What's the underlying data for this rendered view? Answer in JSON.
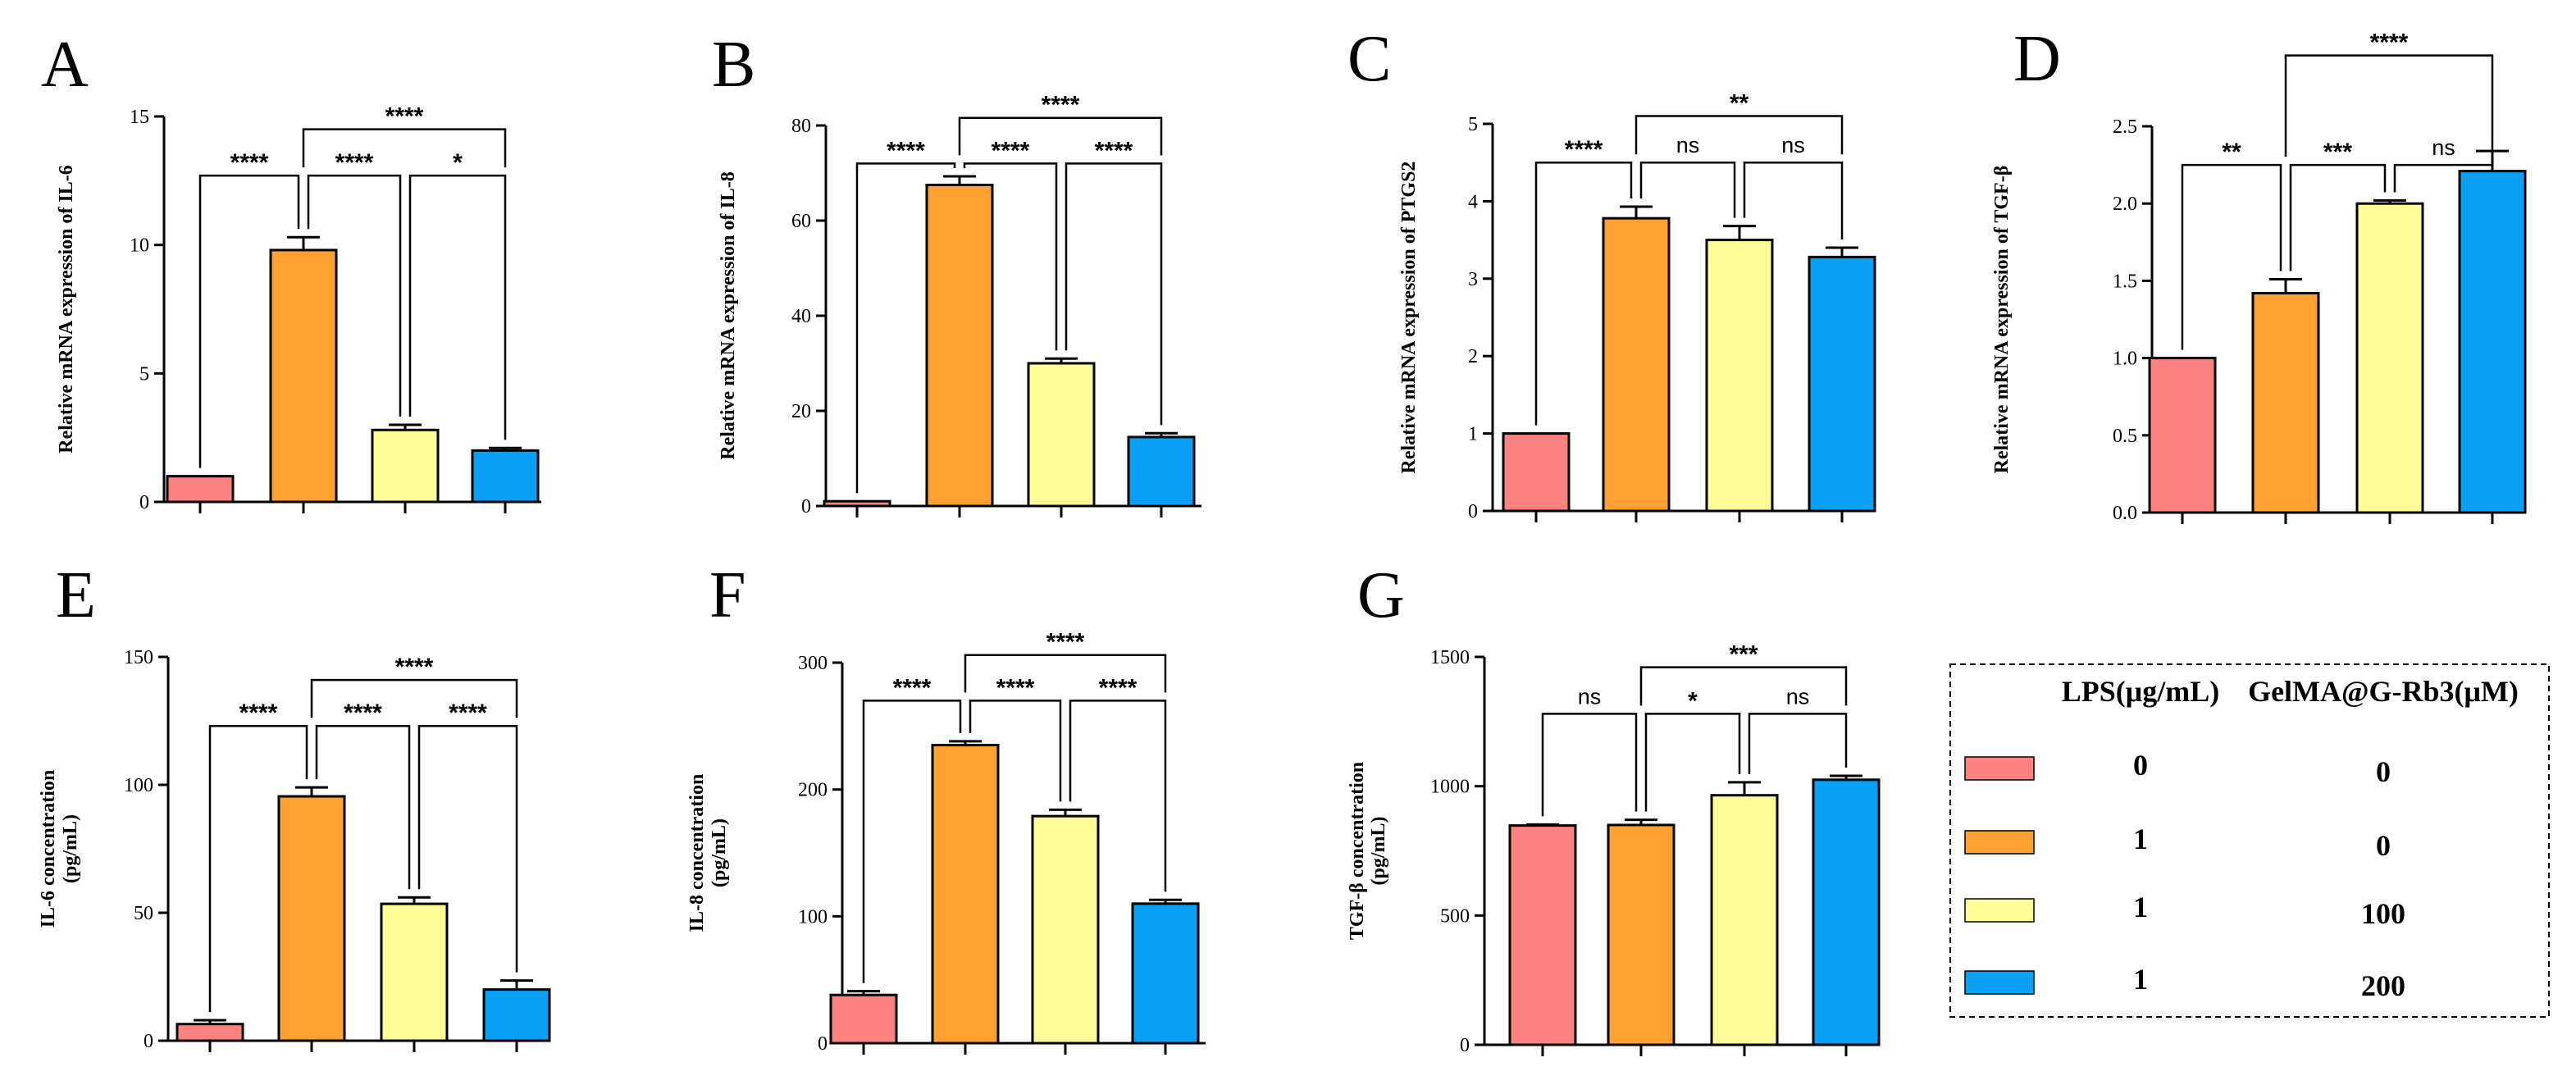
{
  "chart_data": [
    {
      "type": "bar",
      "panel": "A",
      "ylabel": "Relative mRNA expression of IL-6",
      "ylim": [
        0,
        15
      ],
      "yticks": [
        0,
        5,
        10,
        15
      ],
      "values": [
        1.0,
        9.8,
        2.8,
        2.0
      ],
      "errors": [
        0.0,
        0.5,
        0.2,
        0.1
      ],
      "comparisons": [
        {
          "from": 1,
          "to": 0,
          "label": "****"
        },
        {
          "from": 1,
          "to": 2,
          "label": "****"
        },
        {
          "from": 3,
          "to": 2,
          "label": "*"
        },
        {
          "from": 1,
          "to": 3,
          "label": "****"
        }
      ]
    },
    {
      "type": "bar",
      "panel": "B",
      "ylabel": "Relative mRNA expression of IL-8",
      "ylim": [
        0,
        80
      ],
      "yticks": [
        0,
        20,
        40,
        60,
        80
      ],
      "values": [
        1.0,
        67.5,
        30.0,
        14.5
      ],
      "errors": [
        0.0,
        1.8,
        1.0,
        0.8
      ],
      "comparisons": [
        {
          "from": 1,
          "to": 0,
          "label": "****"
        },
        {
          "from": 1,
          "to": 2,
          "label": "****"
        },
        {
          "from": 3,
          "to": 2,
          "label": "****"
        },
        {
          "from": 1,
          "to": 3,
          "label": "****"
        }
      ]
    },
    {
      "type": "bar",
      "panel": "C",
      "ylabel": "Relative mRNA expression of PTGS2",
      "ylim": [
        0,
        5
      ],
      "yticks": [
        0,
        1,
        2,
        3,
        4,
        5
      ],
      "values": [
        1.0,
        3.78,
        3.5,
        3.28
      ],
      "errors": [
        0.0,
        0.15,
        0.18,
        0.12
      ],
      "comparisons": [
        {
          "from": 1,
          "to": 0,
          "label": "****"
        },
        {
          "from": 1,
          "to": 2,
          "label": "ns"
        },
        {
          "from": 3,
          "to": 2,
          "label": "ns"
        },
        {
          "from": 1,
          "to": 3,
          "label": "**"
        }
      ]
    },
    {
      "type": "bar",
      "panel": "D",
      "ylabel": "Relative mRNA expression of TGF-β",
      "ylim": [
        0,
        2.5
      ],
      "yticks": [
        "0.0",
        "0.5",
        "1.0",
        "1.5",
        "2.0",
        "2.5"
      ],
      "values": [
        1.0,
        1.42,
        2.0,
        2.21
      ],
      "errors": [
        0.0,
        0.09,
        0.02,
        0.13
      ],
      "comparisons": [
        {
          "from": 1,
          "to": 0,
          "label": "**"
        },
        {
          "from": 1,
          "to": 2,
          "label": "***"
        },
        {
          "from": 3,
          "to": 2,
          "label": "ns"
        },
        {
          "from": 1,
          "to": 3,
          "label": "****"
        }
      ]
    },
    {
      "type": "bar",
      "panel": "E",
      "ylabel": "IL-6 concentration",
      "ylabel2": "(pg/mL)",
      "ylim": [
        0,
        150
      ],
      "yticks": [
        0,
        50,
        100,
        150
      ],
      "values": [
        6.5,
        95.5,
        53.5,
        20.0
      ],
      "errors": [
        1.5,
        3.5,
        2.5,
        3.5
      ],
      "comparisons": [
        {
          "from": 1,
          "to": 0,
          "label": "****"
        },
        {
          "from": 1,
          "to": 2,
          "label": "****"
        },
        {
          "from": 3,
          "to": 2,
          "label": "****"
        },
        {
          "from": 1,
          "to": 3,
          "label": "****"
        }
      ]
    },
    {
      "type": "bar",
      "panel": "F",
      "ylabel": "IL-8 concentration",
      "ylabel2": "(pg/mL)",
      "ylim": [
        0,
        300
      ],
      "yticks": [
        0,
        100,
        200,
        300
      ],
      "values": [
        38,
        235,
        179,
        110
      ],
      "errors": [
        3,
        3,
        5,
        3
      ],
      "comparisons": [
        {
          "from": 1,
          "to": 0,
          "label": "****"
        },
        {
          "from": 1,
          "to": 2,
          "label": "****"
        },
        {
          "from": 3,
          "to": 2,
          "label": "****"
        },
        {
          "from": 1,
          "to": 3,
          "label": "****"
        }
      ]
    },
    {
      "type": "bar",
      "panel": "G",
      "ylabel": "TGF-β concentration",
      "ylabel2": "(pg/mL)",
      "ylim": [
        0,
        1500
      ],
      "yticks": [
        0,
        500,
        1000,
        1500
      ],
      "values": [
        848,
        850,
        965,
        1025
      ],
      "errors": [
        4,
        20,
        50,
        15
      ],
      "comparisons": [
        {
          "from": 1,
          "to": 0,
          "label": "ns"
        },
        {
          "from": 1,
          "to": 2,
          "label": "*"
        },
        {
          "from": 3,
          "to": 2,
          "label": "ns"
        },
        {
          "from": 1,
          "to": 3,
          "label": "***"
        }
      ]
    }
  ],
  "groups": [
    "#fc8181",
    "#ffa033",
    "#ffff99",
    "#0aa0f6"
  ],
  "legend": {
    "header_lps": "LPS(μg/mL)",
    "header_gel": "GelMA@G-Rb3(μM)",
    "rows": [
      {
        "lps": "0",
        "gel": "0"
      },
      {
        "lps": "1",
        "gel": "0"
      },
      {
        "lps": "1",
        "gel": "100"
      },
      {
        "lps": "1",
        "gel": "200"
      }
    ]
  }
}
